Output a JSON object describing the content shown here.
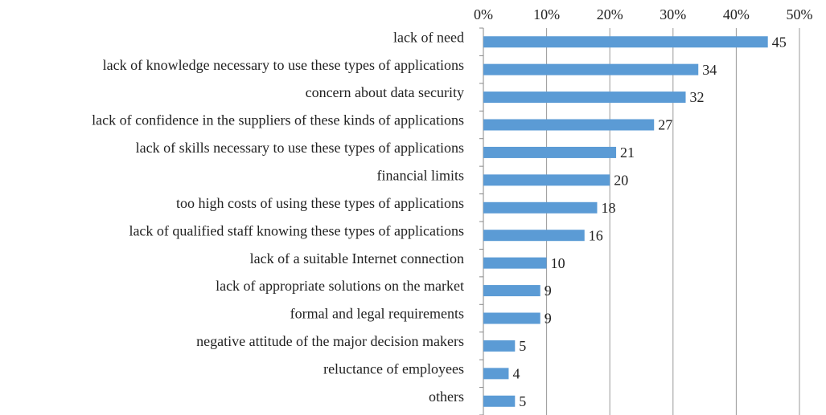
{
  "chart_data": {
    "type": "hbar",
    "categories": [
      "lack of need",
      "lack of knowledge necessary to use these types of applications",
      "concern about data security",
      "lack of confidence in the suppliers of these kinds of applications",
      "lack of skills necessary to use these types of applications",
      "financial limits",
      "too high costs of using these types of applications",
      "lack of qualified staff knowing these types of applications",
      "lack of a suitable Internet connection",
      "lack of appropriate solutions on the market",
      "formal and legal requirements",
      "negative attitude of the major decision makers",
      "reluctance of employees",
      "others"
    ],
    "values": [
      45,
      34,
      32,
      27,
      21,
      20,
      18,
      16,
      10,
      9,
      9,
      5,
      4,
      5
    ],
    "color": "#5b9bd5",
    "xlim": [
      0,
      50
    ],
    "xticks": [
      {
        "value": 0,
        "label": "0%"
      },
      {
        "value": 10,
        "label": "10%"
      },
      {
        "value": 20,
        "label": "20%"
      },
      {
        "value": 30,
        "label": "30%"
      },
      {
        "value": 40,
        "label": "40%"
      },
      {
        "value": 50,
        "label": "50%"
      }
    ],
    "grid": true
  }
}
